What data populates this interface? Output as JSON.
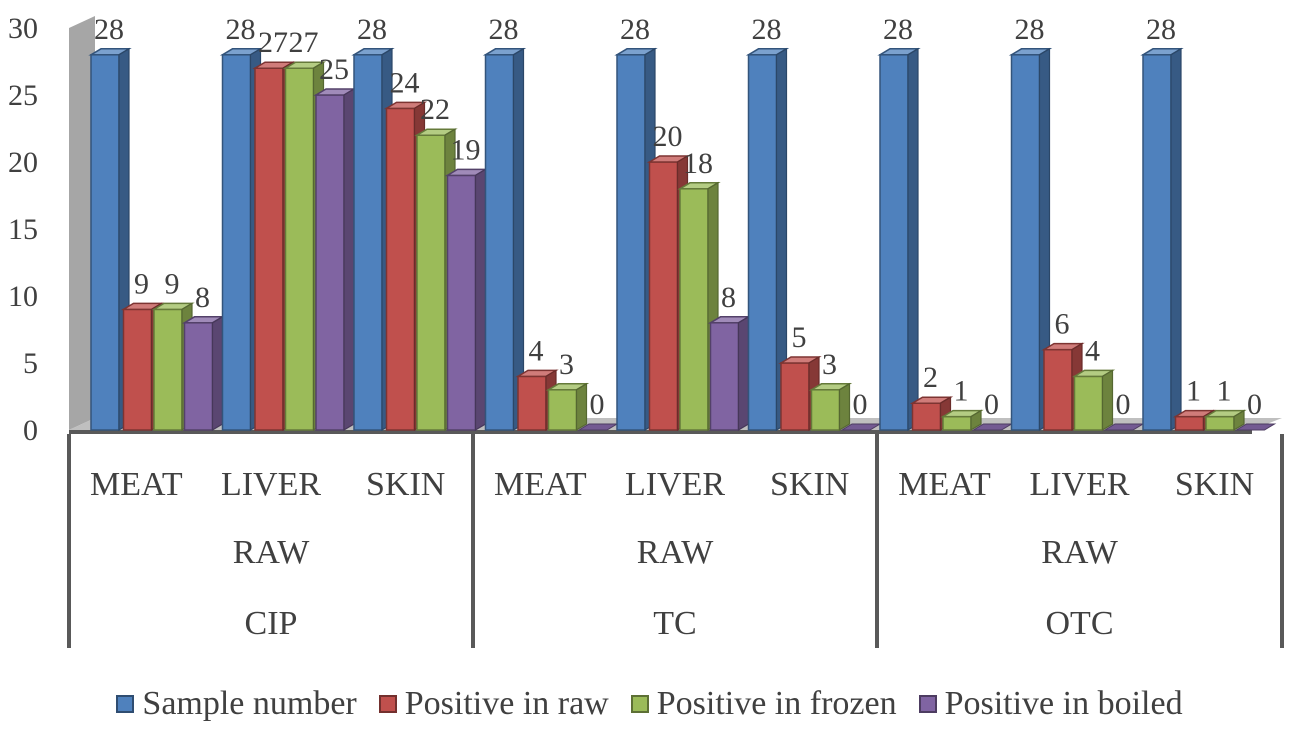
{
  "chart_data": {
    "type": "bar",
    "title": "",
    "xlabel": "",
    "ylabel": "",
    "ylim": [
      0,
      30
    ],
    "yticks": [
      "0",
      "5",
      "10",
      "15",
      "20",
      "25",
      "30"
    ],
    "categories": [
      "MEAT",
      "LIVER",
      "SKIN",
      "MEAT",
      "LIVER",
      "SKIN",
      "MEAT",
      "LIVER",
      "SKIN"
    ],
    "state_labels": [
      "RAW",
      "RAW",
      "RAW"
    ],
    "groups": [
      "CIP",
      "TC",
      "OTC"
    ],
    "series": [
      {
        "name": "Sample number",
        "color": "#4f81bd",
        "values": [
          28,
          28,
          28,
          28,
          28,
          28,
          28,
          28,
          28
        ]
      },
      {
        "name": "Positive in raw",
        "color": "#c0504d",
        "values": [
          9,
          27,
          24,
          4,
          20,
          5,
          2,
          6,
          1
        ]
      },
      {
        "name": "Positive in frozen",
        "color": "#9bbb59",
        "values": [
          9,
          27,
          22,
          3,
          18,
          3,
          1,
          4,
          1
        ]
      },
      {
        "name": "Positive in boiled",
        "color": "#8064a2",
        "values": [
          8,
          25,
          19,
          0,
          8,
          0,
          0,
          0,
          0
        ]
      }
    ],
    "legend_position": "bottom"
  }
}
